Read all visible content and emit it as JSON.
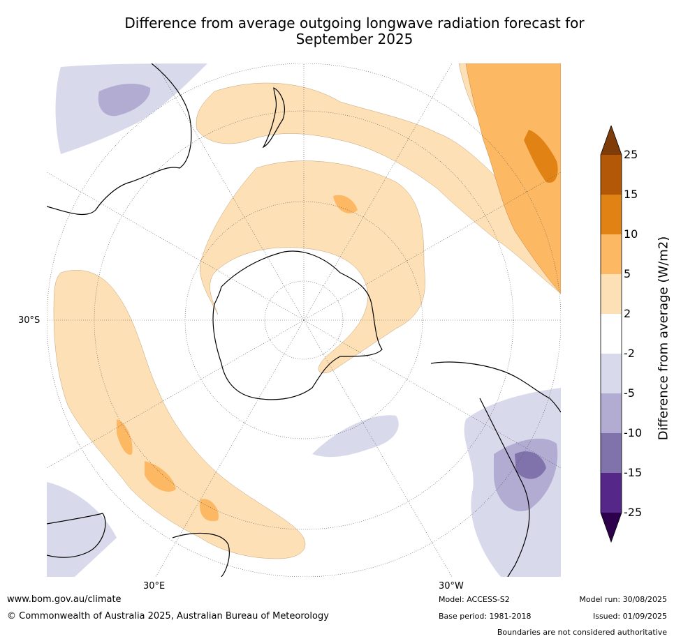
{
  "title_line1": "Difference from average outgoing longwave radiation forecast for",
  "title_line2": "September 2025",
  "labels": {
    "lon_30e": "30°E",
    "lon_30w": "30°W",
    "lat_30s": "30°S"
  },
  "colorbar": {
    "label": "Difference from average (W/m2)",
    "ticks": [
      "25",
      "15",
      "10",
      "5",
      "2",
      "-2",
      "-5",
      "-10",
      "-15",
      "-25"
    ],
    "colors": [
      "#7f3b08",
      "#b35806",
      "#e08214",
      "#fdb863",
      "#fee0b6",
      "#ffffff",
      "#d8daeb",
      "#b2abd2",
      "#8073ac",
      "#542788",
      "#2d004b"
    ]
  },
  "footer": {
    "website": "www.bom.gov.au/climate",
    "copyright": "© Commonwealth of Australia 2025, Australian Bureau of Meteorology",
    "model": "Model: ACCESS-S2",
    "base_period": "Base period: 1981-2018",
    "model_run": "Model run: 30/08/2025",
    "issued": "Issued: 01/09/2025",
    "disclaimer": "Boundaries are not considered authoritative"
  }
}
